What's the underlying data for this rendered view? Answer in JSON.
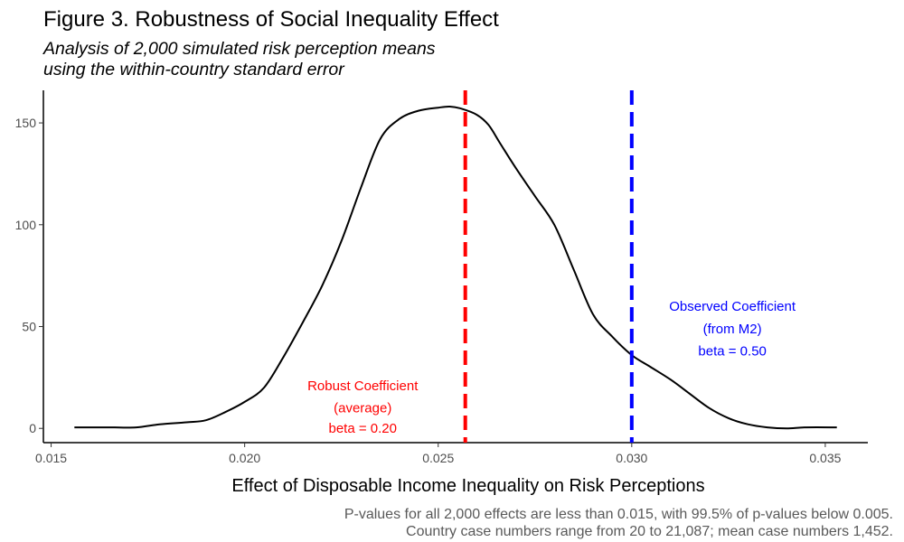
{
  "chart_data": {
    "type": "line",
    "title": "Figure 3. Robustness of Social Inequality Effect",
    "subtitle": [
      "Analysis of 2,000 simulated risk perception means",
      "using the within-country standard error"
    ],
    "xlabel": "Effect of Disposable Income Inequality on Risk Perceptions",
    "ylabel": "",
    "xlim": [
      0.0148,
      0.0361
    ],
    "ylim": [
      -7,
      166
    ],
    "x_ticks": [
      0.015,
      0.02,
      0.025,
      0.03,
      0.035
    ],
    "x_tick_labels": [
      "0.015",
      "0.020",
      "0.025",
      "0.030",
      "0.035"
    ],
    "y_ticks": [
      0,
      50,
      100,
      150
    ],
    "y_tick_labels": [
      "0",
      "50",
      "100",
      "150"
    ],
    "grid": false,
    "series": [
      {
        "color": "#000000",
        "x": [
          0.0156,
          0.0165,
          0.0172,
          0.0178,
          0.0185,
          0.019,
          0.0195,
          0.02,
          0.0205,
          0.021,
          0.0215,
          0.022,
          0.0225,
          0.023,
          0.0235,
          0.024,
          0.0245,
          0.025,
          0.0253,
          0.0256,
          0.026,
          0.0263,
          0.0266,
          0.027,
          0.0275,
          0.028,
          0.0285,
          0.029,
          0.0295,
          0.03,
          0.0305,
          0.031,
          0.0315,
          0.032,
          0.0325,
          0.033,
          0.0335,
          0.034,
          0.0345,
          0.0353
        ],
        "y": [
          0.5,
          0.5,
          0.5,
          2,
          3,
          4,
          8,
          13,
          20,
          35,
          52,
          70,
          92,
          118,
          142,
          152,
          156,
          157.5,
          158,
          157,
          154,
          149,
          140,
          128,
          114,
          100,
          78,
          56,
          45,
          36,
          30,
          24,
          17,
          10,
          5,
          2,
          0.5,
          0,
          0.5,
          0.5
        ]
      }
    ],
    "reference_lines": [
      {
        "x": 0.0257,
        "color": "#ff0000",
        "style": "dashed",
        "label_lines": [
          "Robust Coefficient",
          "(average)",
          "beta = 0.20"
        ],
        "label_x": 0.02305,
        "label_y": [
          21,
          10,
          0
        ]
      },
      {
        "x": 0.03,
        "color": "#0000ff",
        "style": "dashed",
        "label_lines": [
          "Observed Coefficient",
          "(from M2)",
          "beta = 0.50"
        ],
        "label_x": 0.0326,
        "label_y": [
          60,
          49,
          38
        ]
      }
    ],
    "caption": [
      "P-values for all 2,000 effects are less than 0.015, with 99.5% of p-values below 0.005.",
      "Country case numbers range from 20 to 21,087; mean case numbers 1,452."
    ]
  }
}
